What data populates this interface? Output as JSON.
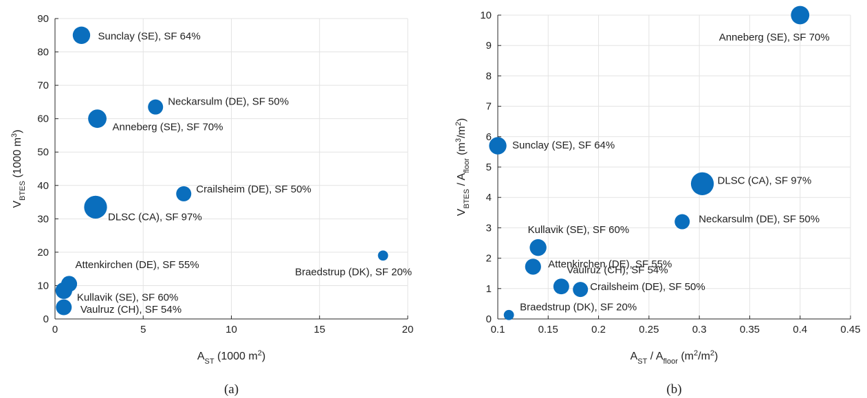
{
  "chart_data": [
    {
      "type": "scatter",
      "panel_label": "(a)",
      "xlim": [
        0,
        20
      ],
      "ylim": [
        0,
        90
      ],
      "xticks": [
        0,
        5,
        10,
        15,
        20
      ],
      "yticks": [
        0,
        10,
        20,
        30,
        40,
        50,
        60,
        70,
        80,
        90
      ],
      "grid": true,
      "marker_color": "#0a6ebd",
      "xlabel": {
        "base": "A",
        "sub": "ST",
        "pre_sup": " (1000 m",
        "sup": "2",
        "post": ")"
      },
      "ylabel": {
        "base": "V",
        "sub": "BTES",
        "pre_sup": " (1000 m",
        "sup": "3",
        "post": ")"
      },
      "points": [
        {
          "label": "Sunclay (SE), SF 64%",
          "x": 1.5,
          "y": 85,
          "sf": 64,
          "label_pos": "right"
        },
        {
          "label": "Neckarsulm (DE), SF 50%",
          "x": 5.7,
          "y": 63.5,
          "sf": 50,
          "label_pos": "upper-right"
        },
        {
          "label": "Anneberg (SE), SF 70%",
          "x": 2.4,
          "y": 60,
          "sf": 70,
          "label_pos": "lower-right"
        },
        {
          "label": "Crailsheim (DE), SF 50%",
          "x": 7.3,
          "y": 37.5,
          "sf": 50,
          "label_pos": "upper-right"
        },
        {
          "label": "DLSC (CA), SF 97%",
          "x": 2.3,
          "y": 33.5,
          "sf": 97,
          "label_pos": "lower-right"
        },
        {
          "label": "Braedstrup (DK), SF 20%",
          "x": 18.6,
          "y": 19,
          "sf": 20,
          "label_pos": "below"
        },
        {
          "label": "Attenkirchen (DE), SF 55%",
          "x": 0.8,
          "y": 10.5,
          "sf": 55,
          "label_pos": "above"
        },
        {
          "label": "Kullavik (SE), SF 60%",
          "x": 0.5,
          "y": 8.5,
          "sf": 60,
          "label_pos": "right"
        },
        {
          "label": "Vaulruz (CH), SF 54%",
          "x": 0.5,
          "y": 3.5,
          "sf": 54,
          "label_pos": "right"
        }
      ]
    },
    {
      "type": "scatter",
      "panel_label": "(b)",
      "xlim": [
        0.1,
        0.45
      ],
      "ylim": [
        0,
        10
      ],
      "xticks": [
        0.1,
        0.15,
        0.2,
        0.25,
        0.3,
        0.35,
        0.4,
        0.45
      ],
      "xtick_labels": [
        "0.1",
        "0.15",
        "0.2",
        "0.25",
        "0.3",
        "0.35",
        "0.4",
        "0.45"
      ],
      "yticks": [
        0,
        1,
        2,
        3,
        4,
        5,
        6,
        7,
        8,
        9,
        10
      ],
      "grid": true,
      "marker_color": "#0a6ebd",
      "xlabel": {
        "base": "A",
        "sub": "ST",
        "mid": " / A",
        "sub2": "floor",
        "pre_sup": " (m",
        "sup": "2",
        "mid2": "/m",
        "sup2": "2",
        "post": ")"
      },
      "ylabel": {
        "base": "V",
        "sub": "BTES",
        "mid": " / A",
        "sub2": "floor",
        "pre_sup": " (m",
        "sup": "3",
        "mid2": "/m",
        "sup2": "2",
        "post": ")"
      },
      "points": [
        {
          "label": "Anneberg (SE), SF 70%",
          "x": 0.4,
          "y": 10.0,
          "sf": 70,
          "label_pos": "lower-left"
        },
        {
          "label": "Sunclay (SE), SF 64%",
          "x": 0.1,
          "y": 5.7,
          "sf": 64,
          "label_pos": "right"
        },
        {
          "label": "DLSC (CA), SF 97%",
          "x": 0.303,
          "y": 4.45,
          "sf": 97,
          "label_pos": "right"
        },
        {
          "label": "Neckarsulm (DE), SF 50%",
          "x": 0.283,
          "y": 3.2,
          "sf": 50,
          "label_pos": "right"
        },
        {
          "label": "Kullavik (SE), SF 60%",
          "x": 0.14,
          "y": 2.35,
          "sf": 60,
          "label_pos": "above"
        },
        {
          "label": "Attenkirchen (DE), SF 55%",
          "x": 0.135,
          "y": 1.72,
          "sf": 55,
          "label_pos": "right"
        },
        {
          "label": "Vaulruz (CH), SF 54%",
          "x": 0.163,
          "y": 1.07,
          "sf": 54,
          "label_pos": "upper-right"
        },
        {
          "label": "Crailsheim (DE), SF 50%",
          "x": 0.182,
          "y": 0.97,
          "sf": 50,
          "label_pos": "right"
        },
        {
          "label": "Braedstrup (DK), SF 20%",
          "x": 0.111,
          "y": 0.13,
          "sf": 20,
          "label_pos": "right"
        }
      ]
    }
  ]
}
